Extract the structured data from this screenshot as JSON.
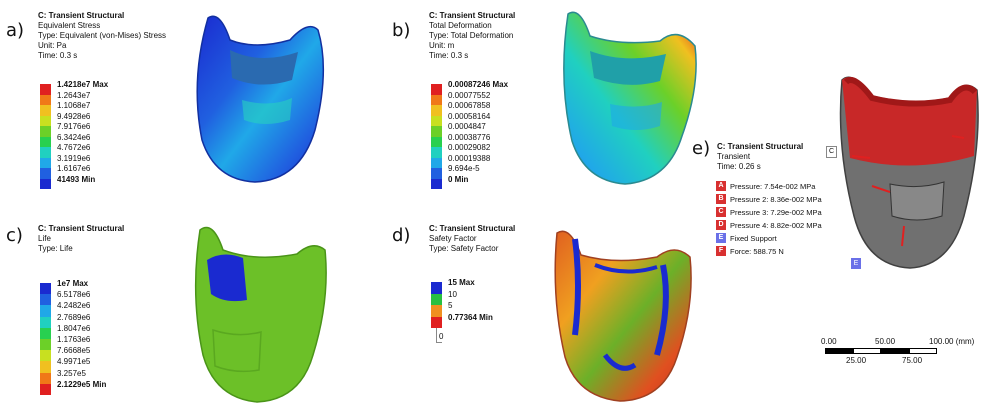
{
  "panels": {
    "a": {
      "label": "a)",
      "title": "C: Transient Structural",
      "lines": [
        "Equivalent Stress",
        "Type: Equivalent (von-Mises) Stress",
        "Unit: Pa",
        "Time: 0.3 s"
      ],
      "legend": [
        "1.4218e7 Max",
        "1.2643e7",
        "1.1068e7",
        "9.4928e6",
        "7.9176e6",
        "6.3424e6",
        "4.7672e6",
        "3.1919e6",
        "1.6167e6",
        "41493 Min"
      ],
      "colors": [
        "#e02020",
        "#f07818",
        "#f0c020",
        "#c8e020",
        "#6cd028",
        "#28d050",
        "#20d0c0",
        "#20a8e8",
        "#2060e0",
        "#1a2ad0"
      ]
    },
    "b": {
      "label": "b)",
      "title": "C: Transient Structural",
      "lines": [
        "Total Deformation",
        "Type: Total Deformation",
        "Unit: m",
        "Time: 0.3 s"
      ],
      "legend": [
        "0.00087246 Max",
        "0.00077552",
        "0.00067858",
        "0.00058164",
        "0.0004847",
        "0.00038776",
        "0.00029082",
        "0.00019388",
        "9.694e-5",
        "0 Min"
      ],
      "colors": [
        "#e02020",
        "#f07818",
        "#f0c020",
        "#c8e020",
        "#6cd028",
        "#28d050",
        "#20d0c0",
        "#20a8e8",
        "#2060e0",
        "#1a2ad0"
      ]
    },
    "c": {
      "label": "c)",
      "title": "C: Transient Structural",
      "lines": [
        "Life",
        "Type: Life"
      ],
      "legend": [
        "1e7 Max",
        "6.5178e6",
        "4.2482e6",
        "2.7689e6",
        "1.8047e6",
        "1.1763e6",
        "7.6668e5",
        "4.9971e5",
        "3.257e5",
        "2.1229e5 Min"
      ],
      "colors": [
        "#1a2ad0",
        "#2060e0",
        "#20a8e8",
        "#20d0c0",
        "#28d050",
        "#6cd028",
        "#c8e020",
        "#f0c020",
        "#f07818",
        "#e02020"
      ]
    },
    "d": {
      "label": "d)",
      "title": "C: Transient Structural",
      "lines": [
        "Safety Factor",
        "Type: Safety Factor"
      ],
      "legend": [
        "15 Max",
        "10",
        "5",
        "0.77364 Min",
        "0"
      ],
      "colors": [
        "#1a2ad0",
        "#28c040",
        "#f09020",
        "#e02020"
      ]
    },
    "e": {
      "label": "e)",
      "title": "C: Transient Structural",
      "lines": [
        "Transient",
        "Time: 0.26 s"
      ],
      "bcs": [
        {
          "tag": "A",
          "text": "Pressure: 7.54e-002 MPa",
          "color": "#d83030"
        },
        {
          "tag": "B",
          "text": "Pressure 2: 8.36e-002 MPa",
          "color": "#d83030"
        },
        {
          "tag": "C",
          "text": "Pressure 3: 7.29e-002 MPa",
          "color": "#d83030"
        },
        {
          "tag": "D",
          "text": "Pressure 4: 8.82e-002 MPa",
          "color": "#d83030"
        },
        {
          "tag": "E",
          "text": "Fixed Support",
          "color": "#6a70e8"
        },
        {
          "tag": "F",
          "text": "Force: 588.75 N",
          "color": "#d83030"
        }
      ],
      "model_tag_c": "C",
      "model_tag_e": "E",
      "scale": {
        "t0": "0.00",
        "t50": "50.00",
        "t100": "100.00 (mm)",
        "t25": "25.00",
        "t75": "75.00"
      }
    }
  }
}
